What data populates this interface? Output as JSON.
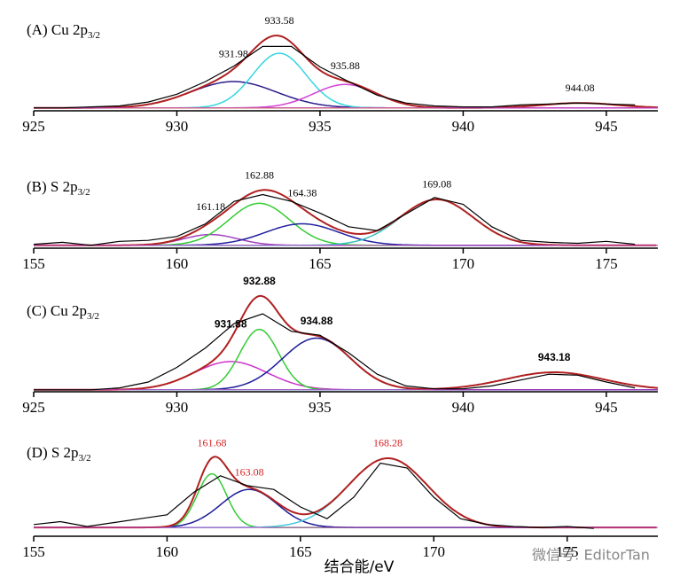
{
  "chart_data": [
    {
      "type": "line",
      "title": "(A) Cu 2p",
      "title_sub": "3/2",
      "xlim": [
        925,
        946.8
      ],
      "xticks": [
        925,
        930,
        935,
        940,
        945
      ],
      "ylim": [
        0,
        100
      ],
      "background": 3,
      "color": "#000000",
      "fit_color": "#b02020",
      "x": [
        925,
        926,
        927,
        928,
        929,
        930,
        931,
        932,
        933,
        934,
        935,
        936,
        937,
        938,
        939,
        940,
        941,
        942,
        943,
        944,
        945,
        946
      ],
      "values": [
        3,
        3,
        4,
        5,
        9,
        17,
        30,
        46,
        66,
        66,
        45,
        30,
        16,
        8,
        5,
        4,
        4,
        6,
        7,
        8,
        7,
        6
      ],
      "peaks": [
        {
          "center": 931.98,
          "height": 27,
          "fwhm": 3.5,
          "color": "#2b1b8c"
        },
        {
          "center": 933.58,
          "height": 56,
          "fwhm": 2.2,
          "color": "#33d6e0"
        },
        {
          "center": 935.88,
          "height": 24,
          "fwhm": 2.6,
          "color": "#d43fd4"
        },
        {
          "center": 944.08,
          "height": 5,
          "fwhm": 3,
          "color": "#d4a020"
        }
      ]
    },
    {
      "type": "line",
      "title": "(B) S 2p",
      "title_sub": "3/2",
      "xlim": [
        155,
        176.8
      ],
      "xticks": [
        155,
        160,
        165,
        170,
        175
      ],
      "ylim": [
        0,
        100
      ],
      "background": 3,
      "color": "#000000",
      "fit_color": "#b02020",
      "x": [
        155,
        156,
        157,
        158,
        159,
        160,
        161,
        162,
        163,
        164,
        165,
        166,
        167,
        168,
        169,
        170,
        171,
        172,
        173,
        174,
        175,
        176
      ],
      "values": [
        4,
        6,
        3,
        7,
        8,
        12,
        25,
        48,
        55,
        48,
        36,
        22,
        18,
        35,
        52,
        45,
        22,
        8,
        6,
        5,
        7,
        4
      ],
      "peaks": [
        {
          "center": 161.18,
          "height": 11,
          "fwhm": 2.2,
          "color": "#a040c0"
        },
        {
          "center": 162.88,
          "height": 43,
          "fwhm": 2.5,
          "color": "#33cc33"
        },
        {
          "center": 164.38,
          "height": 22,
          "fwhm": 3,
          "color": "#2020a0"
        },
        {
          "center": 169.08,
          "height": 47,
          "fwhm": 3,
          "color": "#33c0c0"
        }
      ]
    },
    {
      "type": "line",
      "title": "(C) Cu 2p",
      "title_sub": "3/2",
      "xlim": [
        925,
        946.8
      ],
      "xticks": [
        925,
        930,
        935,
        940,
        945
      ],
      "ylim": [
        0,
        100
      ],
      "background": 2,
      "color": "#000000",
      "fit_color": "#b02020",
      "x": [
        925,
        926,
        927,
        928,
        929,
        930,
        931,
        932,
        933,
        934,
        935,
        936,
        937,
        938,
        939,
        940,
        941,
        942,
        943,
        944,
        945,
        946
      ],
      "values": [
        2,
        2,
        2,
        4,
        10,
        25,
        45,
        70,
        80,
        62,
        58,
        40,
        18,
        6,
        3,
        3,
        6,
        12,
        18,
        17,
        10,
        4
      ],
      "peaks": [
        {
          "center": 931.88,
          "height": 29,
          "fwhm": 3,
          "color": "#cc33cc"
        },
        {
          "center": 932.88,
          "height": 62,
          "fwhm": 1.6,
          "color": "#33cc33"
        },
        {
          "center": 934.88,
          "height": 53,
          "fwhm": 2.8,
          "color": "#1a1a99"
        },
        {
          "center": 943.18,
          "height": 18,
          "fwhm": 4,
          "color": "#33c0d0"
        }
      ]
    },
    {
      "type": "line",
      "title": "(D) S 2p",
      "title_sub": "3/2",
      "xlim": [
        155,
        178.4
      ],
      "xticks": [
        155,
        160,
        165,
        170,
        175
      ],
      "ylim": [
        0,
        100
      ],
      "background": 9,
      "color": "#000000",
      "fit_color": "#b02020",
      "x_label": "结合能/eV",
      "x": [
        155,
        156,
        157,
        158,
        159,
        160,
        161,
        162,
        163,
        164,
        165,
        166,
        167,
        168,
        169,
        170,
        171,
        172,
        173,
        174,
        175,
        176
      ],
      "values": [
        12,
        15,
        10,
        14,
        18,
        22,
        45,
        62,
        52,
        48,
        30,
        18,
        40,
        75,
        70,
        40,
        18,
        12,
        10,
        9,
        10,
        8
      ],
      "peaks": [
        {
          "center": 161.68,
          "height": 55,
          "fwhm": 1.3,
          "color": "#33cc33"
        },
        {
          "center": 163.08,
          "height": 39,
          "fwhm": 2.5,
          "color": "#1a1a99"
        },
        {
          "center": 168.28,
          "height": 71,
          "fwhm": 3.5,
          "color": "#44c8e0"
        }
      ]
    }
  ],
  "watermark": "微信号: EditorTan"
}
